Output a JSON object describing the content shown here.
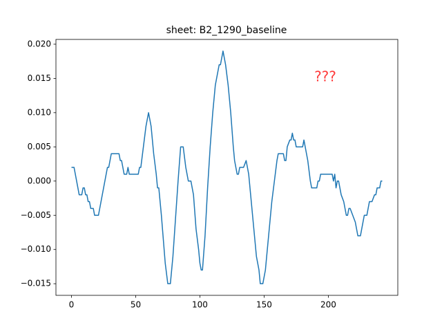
{
  "chart_data": {
    "type": "line",
    "title": "sheet: B2_1290_baseline",
    "x": [
      0,
      2,
      6,
      8,
      9,
      10,
      11,
      12,
      13,
      14,
      15,
      17,
      18,
      21,
      28,
      29,
      30,
      31,
      37,
      38,
      39,
      40,
      41,
      43,
      44,
      45,
      52,
      53,
      54,
      58,
      60,
      62,
      64,
      66,
      67,
      68,
      70,
      73,
      75,
      77,
      79,
      83,
      85,
      87,
      89,
      91,
      93,
      95,
      97,
      99,
      100,
      101,
      102,
      104,
      106,
      108,
      110,
      112,
      114,
      115,
      116,
      118,
      120,
      122,
      124,
      126,
      127,
      128,
      129,
      130,
      131,
      134,
      136,
      137,
      138,
      140,
      142,
      144,
      146,
      147,
      149,
      151,
      152,
      154,
      156,
      158,
      160,
      161,
      165,
      166,
      167,
      168,
      170,
      171,
      172,
      173,
      174,
      175,
      180,
      181,
      183,
      184,
      186,
      187,
      191,
      192,
      193,
      194,
      203,
      204,
      205,
      206,
      207,
      208,
      210,
      212,
      214,
      215,
      216,
      217,
      219,
      221,
      223,
      225,
      227,
      228,
      230,
      232,
      234,
      236,
      237,
      238,
      240,
      241,
      242
    ],
    "series": [
      {
        "color": "#1f77b4",
        "values": [
          0.002,
          0.002,
          -0.002,
          -0.002,
          -0.001,
          -0.001,
          -0.002,
          -0.002,
          -0.003,
          -0.003,
          -0.004,
          -0.004,
          -0.005,
          -0.005,
          0.002,
          0.002,
          0.003,
          0.004,
          0.004,
          0.003,
          0.003,
          0.002,
          0.001,
          0.001,
          0.002,
          0.001,
          0.001,
          0.002,
          0.002,
          0.008,
          0.01,
          0.008,
          0.004,
          0.001,
          -0.001,
          -0.001,
          -0.005,
          -0.012,
          -0.015,
          -0.015,
          -0.011,
          0,
          0.005,
          0.005,
          0.002,
          0,
          0,
          -0.002,
          -0.007,
          -0.01,
          -0.012,
          -0.013,
          -0.013,
          -0.008,
          -0.001,
          0.005,
          0.01,
          0.014,
          0.016,
          0.017,
          0.017,
          0.019,
          0.017,
          0.014,
          0.01,
          0.005,
          0.003,
          0.002,
          0.001,
          0.001,
          0.002,
          0.002,
          0.003,
          0.002,
          0.001,
          -0.003,
          -0.007,
          -0.011,
          -0.013,
          -0.015,
          -0.015,
          -0.013,
          -0.011,
          -0.007,
          -0.003,
          0,
          0.003,
          0.004,
          0.004,
          0.003,
          0.003,
          0.005,
          0.006,
          0.006,
          0.007,
          0.006,
          0.006,
          0.005,
          0.005,
          0.006,
          0.004,
          0.003,
          0,
          -0.001,
          -0.001,
          0,
          0,
          0.001,
          0.001,
          0,
          0.001,
          -0.001,
          0,
          0,
          -0.002,
          -0.003,
          -0.005,
          -0.005,
          -0.004,
          -0.004,
          -0.005,
          -0.006,
          -0.008,
          -0.008,
          -0.006,
          -0.005,
          -0.005,
          -0.003,
          -0.003,
          -0.002,
          -0.002,
          -0.001,
          -0.001,
          0,
          0
        ]
      }
    ],
    "xlim": [
      -12.1,
      254.1
    ],
    "xticks": [
      0,
      50,
      100,
      150,
      200
    ],
    "ylim": [
      -0.0167,
      0.0207
    ],
    "yticks": [
      {
        "value": -0.015,
        "label": "−0.015"
      },
      {
        "value": -0.01,
        "label": "−0.010"
      },
      {
        "value": -0.005,
        "label": "−0.005"
      },
      {
        "value": 0,
        "label": "0.000"
      },
      {
        "value": 0.005,
        "label": "0.005"
      },
      {
        "value": 0.01,
        "label": "0.010"
      },
      {
        "value": 0.015,
        "label": "0.015"
      },
      {
        "value": 0.02,
        "label": "0.020"
      }
    ],
    "grid": false,
    "annotation": {
      "text": "???",
      "color": "#ff3b3b"
    }
  }
}
